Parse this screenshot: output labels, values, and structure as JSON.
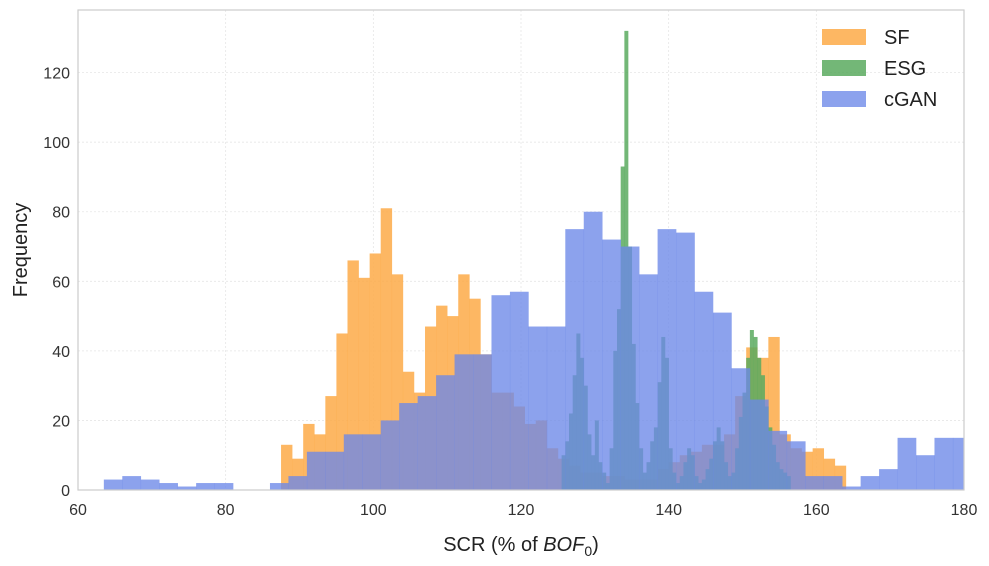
{
  "chart_data": {
    "type": "bar",
    "subtype": "histogram",
    "xlabel": {
      "main": "SCR (% of ",
      "italic": "BOF",
      "subscript": "0",
      "suffix": ")"
    },
    "ylabel": "Frequency",
    "xlim": [
      60,
      180
    ],
    "ylim": [
      0,
      138
    ],
    "xticks": [
      60,
      80,
      100,
      120,
      140,
      160,
      180
    ],
    "yticks": [
      0,
      20,
      40,
      60,
      80,
      100,
      120
    ],
    "grid": true,
    "legend_position": "top-right",
    "series": [
      {
        "name": "SF",
        "color": "#fdaa48",
        "opacity": 0.85,
        "bin_edges": [
          87.5,
          89.0,
          90.5,
          92.0,
          93.5,
          95.0,
          96.5,
          98.0,
          99.5,
          101.0,
          102.5,
          104.0,
          105.5,
          107.0,
          108.5,
          110.0,
          111.5,
          113.0,
          114.5,
          116.0,
          117.5,
          119.0,
          120.5,
          122.0,
          123.5,
          125.0,
          126.5,
          128.0,
          129.5,
          131.0,
          132.5,
          134.0,
          135.5,
          137.0,
          138.5,
          140.0,
          141.5,
          143.0,
          144.5,
          146.0,
          147.5,
          149.0,
          150.5,
          152.0,
          153.5,
          155.0,
          156.5,
          158.0,
          159.5,
          161.0,
          162.5,
          164.0
        ],
        "counts": [
          13,
          9,
          19,
          16,
          27,
          45,
          66,
          61,
          68,
          81,
          62,
          34,
          28,
          47,
          53,
          50,
          62,
          55,
          39,
          28,
          28,
          24,
          19,
          20,
          12,
          9,
          7,
          5,
          5,
          4,
          4,
          3,
          3,
          3,
          6,
          8,
          10,
          11,
          13,
          13,
          16,
          27,
          41,
          38,
          44,
          16,
          12,
          11,
          12,
          9,
          7
        ]
      },
      {
        "name": "ESG",
        "color": "#5aaa5f",
        "opacity": 0.85,
        "bin_edges": [
          125.5,
          126.0,
          126.5,
          127.0,
          127.5,
          128.0,
          128.5,
          129.0,
          129.5,
          130.0,
          130.5,
          131.0,
          131.5,
          132.0,
          132.5,
          133.0,
          133.5,
          134.0,
          134.5,
          135.0,
          135.5,
          136.0,
          136.5,
          137.0,
          137.5,
          138.0,
          138.5,
          139.0,
          139.5,
          140.0,
          140.5,
          141.0,
          141.5,
          142.0,
          142.5,
          143.0,
          143.5,
          144.0,
          144.5,
          145.0,
          145.5,
          146.0,
          146.5,
          147.0,
          147.5,
          148.0,
          148.5,
          149.0,
          149.5,
          150.0,
          150.5,
          151.0,
          151.5,
          152.0,
          152.5,
          153.0,
          153.5,
          154.0,
          154.5,
          155.0,
          155.5,
          156.0,
          156.5
        ],
        "counts": [
          10,
          14,
          22,
          33,
          45,
          38,
          30,
          16,
          10,
          20,
          8,
          5,
          2,
          12,
          40,
          52,
          93,
          132,
          70,
          42,
          25,
          12,
          5,
          8,
          14,
          18,
          31,
          44,
          38,
          12,
          5,
          2,
          4,
          8,
          12,
          10,
          4,
          2,
          3,
          6,
          9,
          14,
          18,
          14,
          8,
          4,
          5,
          12,
          21,
          28,
          38,
          46,
          44,
          38,
          33,
          24,
          18,
          13,
          8,
          6,
          5,
          4
        ]
      },
      {
        "name": "cGAN",
        "color": "#6b88e8",
        "opacity": 0.78,
        "bin_edges": [
          63.5,
          66.0,
          68.5,
          71.0,
          73.5,
          76.0,
          78.5,
          81.0,
          83.5,
          86.0,
          88.5,
          91.0,
          93.5,
          96.0,
          98.5,
          101.0,
          103.5,
          106.0,
          108.5,
          111.0,
          113.5,
          116.0,
          118.5,
          121.0,
          123.5,
          126.0,
          128.5,
          131.0,
          133.5,
          136.0,
          138.5,
          141.0,
          143.5,
          146.0,
          148.5,
          151.0,
          153.5,
          156.0,
          158.5,
          161.0,
          163.5,
          166.0,
          168.5,
          171.0,
          173.5,
          176.0,
          178.5,
          181.0
        ],
        "counts": [
          3,
          4,
          3,
          2,
          1,
          2,
          2,
          0,
          0,
          2,
          4,
          11,
          11,
          16,
          16,
          20,
          25,
          27,
          33,
          39,
          39,
          56,
          57,
          47,
          47,
          75,
          80,
          72,
          70,
          62,
          75,
          74,
          57,
          51,
          35,
          26,
          17,
          14,
          4,
          4,
          1,
          4,
          6,
          15,
          10,
          15,
          15
        ]
      }
    ]
  }
}
